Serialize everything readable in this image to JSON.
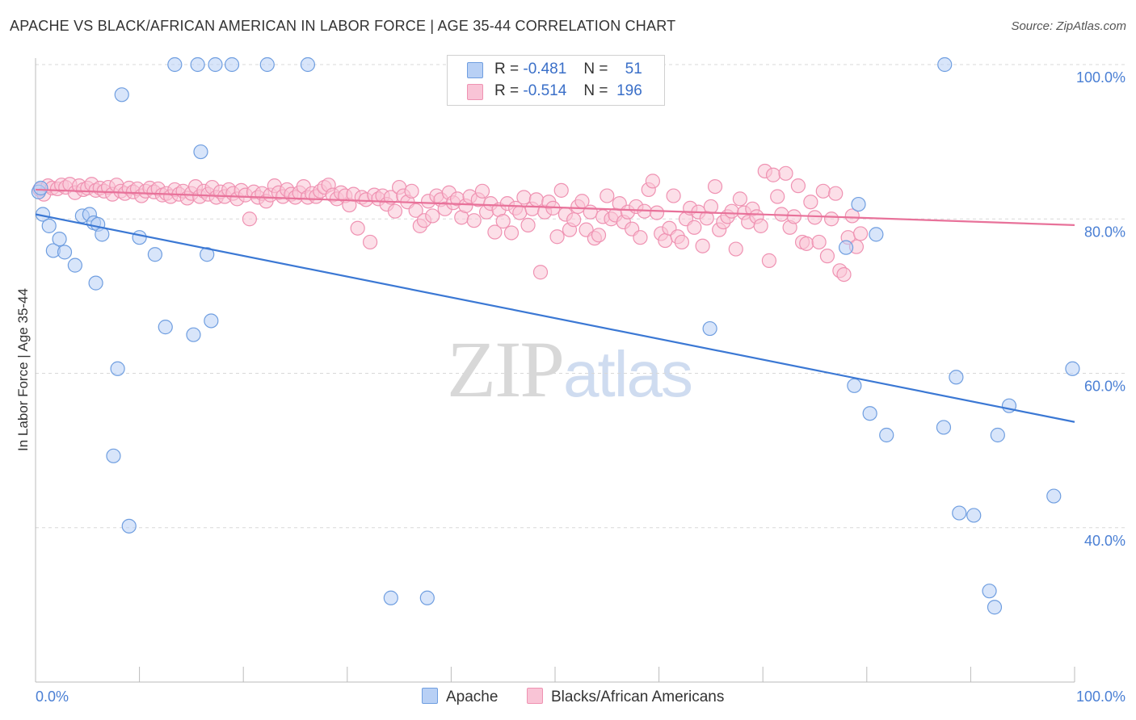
{
  "title": "APACHE VS BLACK/AFRICAN AMERICAN IN LABOR FORCE | AGE 35-44 CORRELATION CHART",
  "source": "Source: ZipAtlas.com",
  "watermark": {
    "part1": "ZIP",
    "part2": "atlas"
  },
  "legend": {
    "apache": {
      "r_label": "R =",
      "r_value": "-0.481",
      "n_label": "N =",
      "n_value": "51"
    },
    "black": {
      "r_label": "R =",
      "r_value": "-0.514",
      "n_label": "N =",
      "n_value": "196"
    }
  },
  "bottom_legend": {
    "apache": "Apache",
    "black": "Blacks/African Americans"
  },
  "colors": {
    "apache_fill": "#b8d0f5",
    "apache_stroke": "#6f9ee0",
    "apache_line": "#3b78d4",
    "black_fill": "#f9c4d6",
    "black_stroke": "#ef92b2",
    "black_line": "#e8729a",
    "tick": "#4a7fd4",
    "grid": "#d8d8d8"
  },
  "chart_data": {
    "type": "scatter",
    "title": "APACHE VS BLACK/AFRICAN AMERICAN IN LABOR FORCE | AGE 35-44 CORRELATION CHART",
    "xlabel": "",
    "ylabel": "In Labor Force | Age 35-44",
    "xlim": [
      0,
      100
    ],
    "ylim": [
      20,
      100
    ],
    "x_tick_labels": [
      "0.0%",
      "100.0%"
    ],
    "y_ticks": [
      40,
      60,
      80,
      100
    ],
    "y_tick_labels": [
      "40.0%",
      "60.0%",
      "80.0%",
      "100.0%"
    ],
    "grid": true,
    "legend_position": "top-center",
    "series": [
      {
        "name": "Apache",
        "r": -0.481,
        "n": 51,
        "trend": {
          "x": [
            0,
            100
          ],
          "y": [
            80.6,
            53.7
          ]
        },
        "points": [
          [
            0.3,
            83.5
          ],
          [
            0.7,
            80.6
          ],
          [
            1.3,
            79.1
          ],
          [
            1.7,
            75.9
          ],
          [
            2.3,
            77.4
          ],
          [
            2.8,
            75.7
          ],
          [
            3.8,
            74.0
          ],
          [
            4.5,
            80.4
          ],
          [
            5.2,
            80.6
          ],
          [
            5.6,
            79.5
          ],
          [
            6.0,
            79.3
          ],
          [
            5.8,
            71.7
          ],
          [
            6.4,
            78.0
          ],
          [
            7.5,
            49.3
          ],
          [
            7.9,
            60.6
          ],
          [
            8.3,
            96.1
          ],
          [
            9.0,
            40.2
          ],
          [
            10.0,
            77.6
          ],
          [
            11.5,
            75.4
          ],
          [
            12.5,
            66.0
          ],
          [
            13.4,
            100
          ],
          [
            15.2,
            65.0
          ],
          [
            15.6,
            100
          ],
          [
            15.9,
            88.7
          ],
          [
            16.5,
            75.4
          ],
          [
            16.9,
            66.8
          ],
          [
            17.3,
            100
          ],
          [
            18.9,
            100
          ],
          [
            22.3,
            100
          ],
          [
            26.2,
            100
          ],
          [
            34.2,
            30.9
          ],
          [
            37.7,
            30.9
          ],
          [
            64.9,
            65.8
          ],
          [
            78.0,
            76.3
          ],
          [
            78.8,
            58.4
          ],
          [
            79.2,
            81.9
          ],
          [
            80.3,
            54.8
          ],
          [
            80.9,
            78.0
          ],
          [
            81.9,
            52.0
          ],
          [
            87.4,
            53.0
          ],
          [
            87.5,
            100
          ],
          [
            88.6,
            59.5
          ],
          [
            88.9,
            41.9
          ],
          [
            90.3,
            41.6
          ],
          [
            91.8,
            31.8
          ],
          [
            92.3,
            29.7
          ],
          [
            92.6,
            52.0
          ],
          [
            93.7,
            55.8
          ],
          [
            98.0,
            44.1
          ],
          [
            99.8,
            60.6
          ],
          [
            0.5,
            84.0
          ]
        ]
      },
      {
        "name": "Blacks/African Americans",
        "r": -0.514,
        "n": 196,
        "trend": {
          "x": [
            0,
            100
          ],
          "y": [
            83.8,
            79.2
          ]
        },
        "points": [
          [
            0.4,
            83.8
          ],
          [
            0.8,
            83.2
          ],
          [
            1.2,
            84.3
          ],
          [
            1.6,
            84.0
          ],
          [
            2.1,
            83.9
          ],
          [
            2.5,
            84.4
          ],
          [
            2.9,
            84.1
          ],
          [
            3.3,
            84.5
          ],
          [
            3.8,
            83.4
          ],
          [
            4.2,
            84.3
          ],
          [
            4.6,
            83.8
          ],
          [
            5.0,
            84.0
          ],
          [
            5.4,
            84.5
          ],
          [
            5.8,
            83.7
          ],
          [
            6.2,
            84.0
          ],
          [
            6.6,
            83.6
          ],
          [
            7.0,
            84.1
          ],
          [
            7.4,
            83.2
          ],
          [
            7.8,
            84.4
          ],
          [
            8.2,
            83.6
          ],
          [
            8.6,
            83.3
          ],
          [
            9.0,
            84.0
          ],
          [
            9.4,
            83.5
          ],
          [
            9.8,
            83.9
          ],
          [
            10.2,
            83.0
          ],
          [
            10.6,
            83.6
          ],
          [
            11.0,
            84.0
          ],
          [
            11.4,
            83.5
          ],
          [
            11.8,
            83.9
          ],
          [
            12.2,
            83.1
          ],
          [
            12.6,
            83.3
          ],
          [
            13.0,
            82.9
          ],
          [
            13.4,
            83.8
          ],
          [
            13.8,
            83.2
          ],
          [
            14.2,
            83.6
          ],
          [
            14.6,
            82.7
          ],
          [
            15.0,
            83.3
          ],
          [
            15.4,
            84.2
          ],
          [
            15.8,
            82.9
          ],
          [
            16.2,
            83.6
          ],
          [
            16.6,
            83.2
          ],
          [
            17.0,
            84.1
          ],
          [
            17.4,
            82.8
          ],
          [
            17.8,
            83.5
          ],
          [
            18.2,
            82.9
          ],
          [
            18.6,
            83.8
          ],
          [
            19.0,
            83.3
          ],
          [
            19.4,
            82.6
          ],
          [
            19.8,
            83.7
          ],
          [
            20.2,
            83.1
          ],
          [
            20.6,
            80.0
          ],
          [
            21.0,
            83.5
          ],
          [
            21.4,
            82.8
          ],
          [
            21.8,
            83.3
          ],
          [
            22.2,
            82.3
          ],
          [
            22.6,
            83.1
          ],
          [
            23.0,
            84.3
          ],
          [
            23.4,
            83.4
          ],
          [
            23.8,
            82.9
          ],
          [
            24.2,
            83.8
          ],
          [
            24.6,
            83.2
          ],
          [
            25.0,
            82.8
          ],
          [
            25.4,
            83.4
          ],
          [
            25.8,
            84.2
          ],
          [
            26.2,
            82.8
          ],
          [
            26.6,
            83.3
          ],
          [
            27.0,
            82.9
          ],
          [
            27.4,
            83.6
          ],
          [
            27.8,
            84.1
          ],
          [
            28.2,
            84.4
          ],
          [
            28.6,
            83.1
          ],
          [
            29.0,
            82.6
          ],
          [
            29.4,
            83.4
          ],
          [
            29.8,
            83.0
          ],
          [
            30.2,
            81.8
          ],
          [
            30.6,
            83.2
          ],
          [
            31.0,
            78.8
          ],
          [
            31.4,
            82.8
          ],
          [
            31.8,
            82.5
          ],
          [
            32.2,
            77.0
          ],
          [
            32.6,
            83.1
          ],
          [
            33.0,
            82.6
          ],
          [
            33.4,
            83.0
          ],
          [
            33.8,
            81.9
          ],
          [
            34.2,
            82.8
          ],
          [
            34.6,
            81.0
          ],
          [
            35.0,
            84.1
          ],
          [
            35.4,
            83.0
          ],
          [
            35.8,
            82.2
          ],
          [
            36.2,
            83.6
          ],
          [
            36.6,
            81.1
          ],
          [
            37.0,
            79.1
          ],
          [
            37.4,
            79.8
          ],
          [
            37.8,
            82.3
          ],
          [
            38.2,
            80.4
          ],
          [
            38.6,
            83.0
          ],
          [
            39.0,
            82.5
          ],
          [
            39.4,
            81.3
          ],
          [
            39.8,
            83.4
          ],
          [
            40.2,
            82.1
          ],
          [
            40.6,
            82.6
          ],
          [
            41.0,
            80.2
          ],
          [
            41.4,
            81.7
          ],
          [
            41.8,
            82.9
          ],
          [
            42.2,
            79.8
          ],
          [
            42.6,
            82.5
          ],
          [
            43.0,
            83.6
          ],
          [
            43.4,
            80.9
          ],
          [
            43.8,
            82.0
          ],
          [
            44.2,
            78.3
          ],
          [
            44.6,
            81.2
          ],
          [
            45.0,
            79.7
          ],
          [
            45.4,
            82.0
          ],
          [
            45.8,
            78.2
          ],
          [
            46.2,
            81.4
          ],
          [
            46.6,
            80.8
          ],
          [
            47.0,
            82.8
          ],
          [
            47.4,
            79.2
          ],
          [
            47.8,
            81.3
          ],
          [
            48.2,
            82.5
          ],
          [
            48.6,
            73.1
          ],
          [
            49.0,
            80.9
          ],
          [
            49.4,
            82.2
          ],
          [
            49.8,
            81.4
          ],
          [
            50.2,
            77.7
          ],
          [
            50.6,
            83.7
          ],
          [
            51.0,
            80.6
          ],
          [
            51.4,
            78.6
          ],
          [
            51.8,
            79.9
          ],
          [
            52.2,
            81.6
          ],
          [
            52.6,
            82.3
          ],
          [
            53.0,
            78.6
          ],
          [
            53.4,
            80.9
          ],
          [
            53.8,
            77.5
          ],
          [
            54.2,
            77.9
          ],
          [
            54.6,
            80.3
          ],
          [
            55.0,
            83.0
          ],
          [
            55.4,
            80.0
          ],
          [
            55.8,
            80.5
          ],
          [
            56.2,
            82.0
          ],
          [
            56.6,
            79.6
          ],
          [
            57.0,
            80.9
          ],
          [
            57.4,
            78.7
          ],
          [
            57.8,
            81.6
          ],
          [
            58.2,
            77.6
          ],
          [
            58.6,
            81.0
          ],
          [
            59.0,
            83.8
          ],
          [
            59.4,
            84.9
          ],
          [
            59.8,
            80.8
          ],
          [
            60.2,
            78.1
          ],
          [
            60.6,
            77.2
          ],
          [
            61.0,
            78.8
          ],
          [
            61.4,
            83.0
          ],
          [
            61.8,
            77.7
          ],
          [
            62.2,
            77.0
          ],
          [
            62.6,
            80.0
          ],
          [
            63.0,
            81.4
          ],
          [
            63.4,
            78.9
          ],
          [
            63.8,
            80.9
          ],
          [
            64.2,
            76.5
          ],
          [
            64.6,
            80.1
          ],
          [
            65.0,
            81.6
          ],
          [
            65.4,
            84.2
          ],
          [
            65.8,
            78.6
          ],
          [
            66.2,
            79.6
          ],
          [
            66.6,
            80.3
          ],
          [
            67.0,
            81.0
          ],
          [
            67.4,
            76.1
          ],
          [
            67.8,
            82.6
          ],
          [
            68.2,
            80.8
          ],
          [
            68.6,
            79.6
          ],
          [
            69.0,
            81.3
          ],
          [
            69.4,
            80.3
          ],
          [
            69.8,
            79.1
          ],
          [
            70.2,
            86.2
          ],
          [
            70.6,
            74.6
          ],
          [
            71.0,
            85.7
          ],
          [
            71.4,
            82.9
          ],
          [
            71.8,
            80.6
          ],
          [
            72.2,
            85.9
          ],
          [
            72.6,
            78.9
          ],
          [
            73.0,
            80.3
          ],
          [
            73.4,
            84.3
          ],
          [
            73.8,
            77.0
          ],
          [
            74.2,
            76.8
          ],
          [
            74.6,
            82.2
          ],
          [
            75.0,
            80.2
          ],
          [
            75.4,
            77.0
          ],
          [
            75.8,
            83.6
          ],
          [
            76.2,
            75.2
          ],
          [
            76.6,
            80.0
          ],
          [
            77.0,
            83.3
          ],
          [
            77.4,
            73.3
          ],
          [
            77.8,
            72.8
          ],
          [
            78.2,
            77.6
          ],
          [
            78.6,
            80.4
          ],
          [
            79.0,
            76.4
          ],
          [
            79.4,
            78.1
          ]
        ]
      }
    ]
  }
}
